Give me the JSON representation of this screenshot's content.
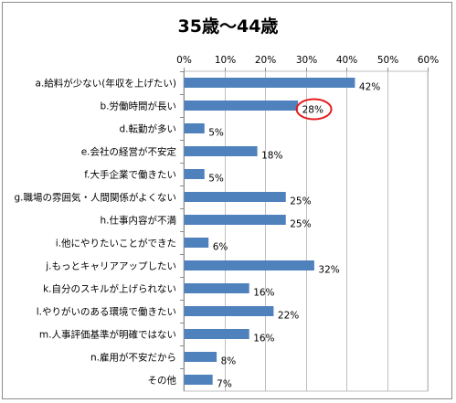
{
  "chart_data": {
    "type": "bar",
    "orientation": "horizontal",
    "title": "35歳～44歳",
    "xlim": [
      0,
      60
    ],
    "x_ticks": [
      "0%",
      "10%",
      "20%",
      "30%",
      "40%",
      "50%",
      "60%"
    ],
    "x_tick_values": [
      0,
      10,
      20,
      30,
      40,
      50,
      60
    ],
    "x_axis_position": "top",
    "grid": true,
    "legend": "none",
    "bar_color": "#4f81bd",
    "highlight_color": "#e41e1e",
    "highlight_index": 1,
    "categories": [
      "a.給料が少ない(年収を上げたい)",
      "b.労働時間が長い",
      "d.転勤が多い",
      "e.会社の経営が不安定",
      "f.大手企業で働きたい",
      "g.職場の雰囲気・人間関係がよくない",
      "h.仕事内容が不満",
      "i.他にやりたいことができた",
      "j.もっとキャリアアップしたい",
      "k.自分のスキルが上げられない",
      "l.やりがいのある環境で働きたい",
      "m.人事評価基準が明確ではない",
      "n.雇用が不安だから",
      "その他"
    ],
    "values": [
      42,
      28,
      5,
      18,
      5,
      25,
      25,
      6,
      32,
      16,
      22,
      16,
      8,
      7
    ],
    "value_labels": [
      "42%",
      "28%",
      "5%",
      "18%",
      "5%",
      "25%",
      "25%",
      "6%",
      "32%",
      "16%",
      "22%",
      "16%",
      "8%",
      "7%"
    ]
  }
}
